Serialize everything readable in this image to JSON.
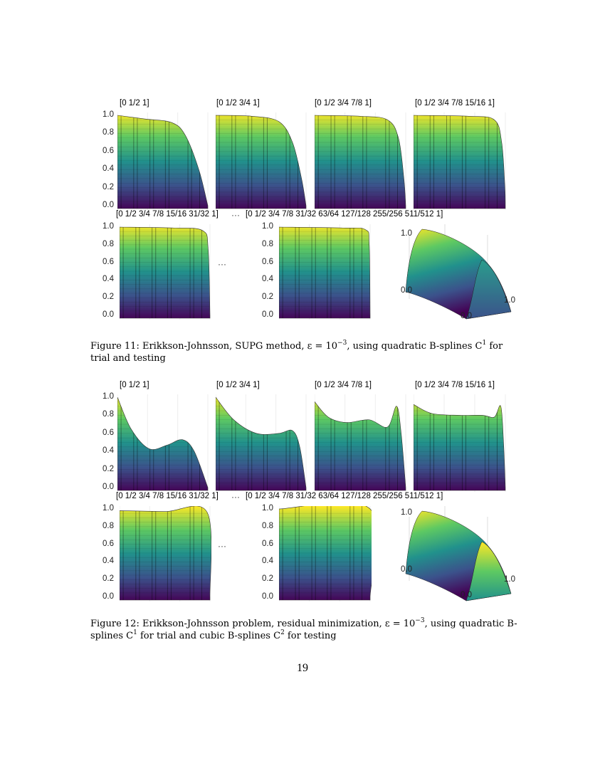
{
  "page_number": "19",
  "figures": [
    {
      "panel_titles": [
        "[0 1/2 1]",
        "[0 1/2 3/4 1]",
        "[0 1/2 3/4 7/8 1]",
        "[0 1/2 3/4 7/8 15/16 1]",
        "[0 1/2 3/4 7/8 15/16 31/32 1]",
        "[0 1/2 3/4 7/8 31/32 63/64 127/128 255/256 511/512 1]"
      ],
      "ellipsis": "···",
      "y_ticks": [
        "1.0",
        "0.8",
        "0.6",
        "0.4",
        "0.2",
        "0.0"
      ],
      "ticks_3d": {
        "z_top": "1.0",
        "z_bottom": "0.0",
        "x_right": "1.0",
        "x_origin": "0.0"
      },
      "caption": [
        {
          "t": "Figure 11: Erikkson-Johnsson, SUPG method, ε = 10"
        },
        {
          "t": "−3",
          "sup": true
        },
        {
          "t": ", using quadratic B-splines C"
        },
        {
          "t": "1",
          "sup": true
        },
        {
          "t": " for trial and testing"
        }
      ]
    },
    {
      "panel_titles": [
        "[0 1/2 1]",
        "[0 1/2 3/4 1]",
        "[0 1/2 3/4 7/8 1]",
        "[0 1/2 3/4 7/8 15/16 1]",
        "[0 1/2 3/4 7/8 15/16 31/32 1]",
        "[0 1/2 3/4 7/8 31/32 63/64 127/128 255/256 511/512 1]"
      ],
      "ellipsis": "···",
      "y_ticks": [
        "1.0",
        "0.8",
        "0.6",
        "0.4",
        "0.2",
        "0.0"
      ],
      "ticks_3d": {
        "z_top": "1.0",
        "z_bottom": "0.0",
        "x_right": "1.0",
        "x_origin": "0.0"
      },
      "caption": [
        {
          "t": "Figure 12: Erikkson-Johnsson problem, residual minimization, ε = 10"
        },
        {
          "t": "−3",
          "sup": true
        },
        {
          "t": ", using quadratic B-splines C"
        },
        {
          "t": "1",
          "sup": true
        },
        {
          "t": " for trial and cubic B-splines C"
        },
        {
          "t": "2",
          "sup": true
        },
        {
          "t": " for testing"
        }
      ]
    }
  ],
  "colormap": [
    "#fde725",
    "#5ec962",
    "#21918c",
    "#3b528b",
    "#440154"
  ]
}
